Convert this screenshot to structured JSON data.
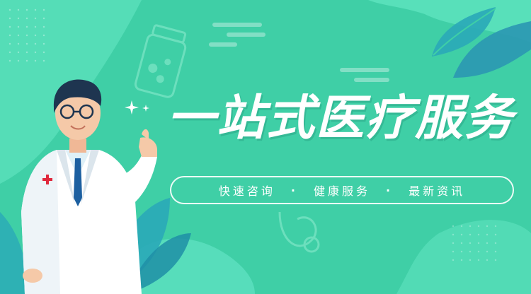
{
  "headline": "一站式医疗服务",
  "services": [
    "快速咨询",
    "健康服务",
    "最新资讯"
  ],
  "separator": "·",
  "colors": {
    "background": "#3fcfa6",
    "light_blob": "#5fe3bf",
    "dark_blob": "#2aa9b8",
    "text": "#ffffff"
  },
  "icons": [
    "medicine-bottle-icon",
    "stethoscope-icon",
    "sparkle-icon",
    "red-cross-icon"
  ]
}
